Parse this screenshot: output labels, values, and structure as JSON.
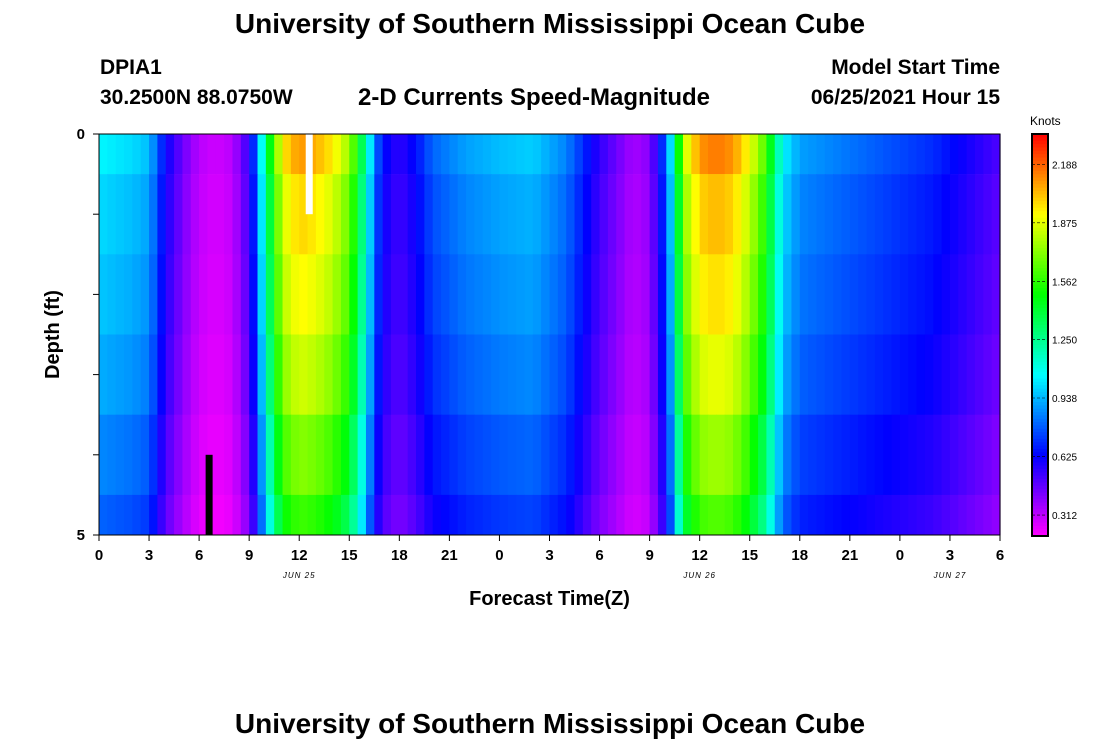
{
  "header": {
    "title": "University of Southern Mississippi Ocean Cube",
    "footer_title": "University of Southern Mississippi Ocean Cube",
    "station": "DPIA1",
    "coordinates": "30.2500N  88.0750W",
    "model_start_label": "Model Start Time",
    "model_start_value": "06/25/2021 Hour 15"
  },
  "chart_data": {
    "type": "heatmap",
    "title": "2-D Currents Speed-Magnitude",
    "xlabel": "Forecast Time(Z)",
    "ylabel": "Depth (ft)",
    "units": "Knots",
    "x_hours": [
      0,
      3,
      6,
      9,
      12,
      15,
      18,
      21,
      24,
      27,
      30,
      33,
      36,
      39,
      42,
      45,
      48,
      51,
      54
    ],
    "x_tick_labels": [
      "0",
      "3",
      "6",
      "9",
      "12",
      "15",
      "18",
      "21",
      "0",
      "3",
      "6",
      "9",
      "12",
      "15",
      "18",
      "21",
      "0",
      "3",
      "6"
    ],
    "date_labels": [
      {
        "text": "JUN 25",
        "hour": 12
      },
      {
        "text": "JUN 26",
        "hour": 36
      },
      {
        "text": "JUN 27",
        "hour": 51
      }
    ],
    "ylim": [
      0,
      5
    ],
    "y_tick_labels": [
      "0",
      "5"
    ],
    "depth_layers": [
      0.25,
      1.0,
      2.0,
      3.0,
      4.0,
      4.75
    ],
    "colorbar": {
      "range": [
        0.2,
        2.35
      ],
      "ticks": [
        "0.312",
        "0.625",
        "0.938",
        "1.250",
        "1.562",
        "1.875",
        "2.188"
      ]
    },
    "speed_profile_hours": [
      0,
      2,
      3,
      4,
      5,
      6,
      7,
      8,
      9,
      9.5,
      10,
      11,
      12,
      13,
      14,
      15,
      15.5,
      16,
      16.5,
      17,
      18,
      19,
      20,
      22,
      24,
      26,
      28,
      29,
      30,
      31,
      32,
      33,
      34,
      34.5,
      35,
      36,
      37,
      38,
      39,
      40,
      40.5,
      41,
      42,
      44,
      46,
      48,
      50,
      52,
      54
    ],
    "speed_profile_knots": [
      1.05,
      1.0,
      0.95,
      0.62,
      0.45,
      0.32,
      0.28,
      0.32,
      0.55,
      0.85,
      1.3,
      1.95,
      2.1,
      2.05,
      1.95,
      1.75,
      1.5,
      1.2,
      0.85,
      0.65,
      0.55,
      0.65,
      0.8,
      0.9,
      0.95,
      0.98,
      0.85,
      0.7,
      0.55,
      0.45,
      0.35,
      0.4,
      0.8,
      1.2,
      1.8,
      2.1,
      2.15,
      2.1,
      1.9,
      1.6,
      1.3,
      1.05,
      0.9,
      0.85,
      0.8,
      0.75,
      0.7,
      0.6,
      0.5
    ],
    "depth_factors": [
      1.0,
      0.95,
      0.92,
      0.88,
      0.82,
      0.76
    ],
    "markers": [
      {
        "name": "white-marker",
        "hour": 12.6,
        "depth_from": 0,
        "depth_to": 1,
        "color": "#ffffff"
      },
      {
        "name": "black-marker",
        "hour": 6.6,
        "depth_from": 4,
        "depth_to": 5,
        "color": "#000000"
      }
    ]
  }
}
